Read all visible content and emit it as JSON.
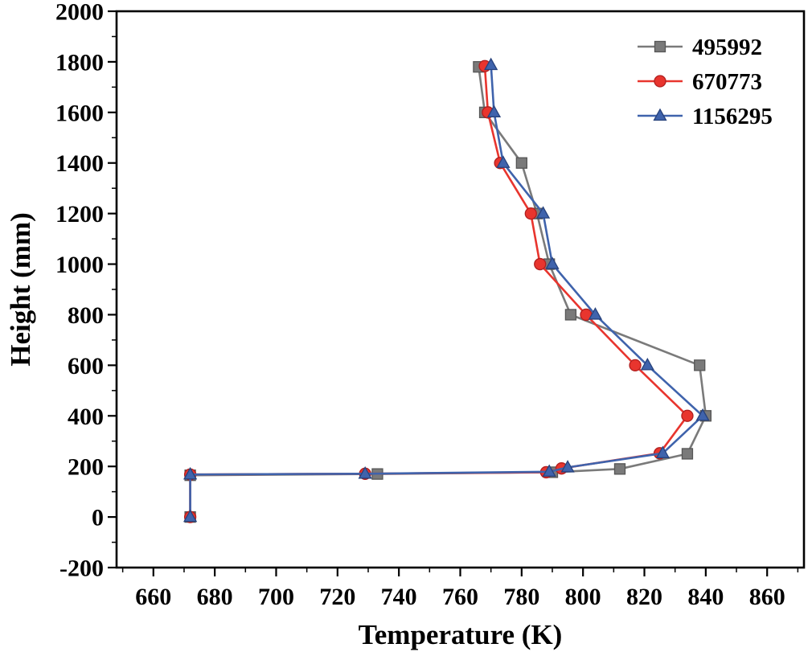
{
  "chart_data": {
    "type": "line",
    "title": "",
    "xlabel": "Temperature (K)",
    "ylabel": "Height (mm)",
    "xlim": [
      648,
      872
    ],
    "ylim": [
      -200,
      2000
    ],
    "xticks": [
      660,
      680,
      700,
      720,
      740,
      760,
      780,
      800,
      820,
      840,
      860
    ],
    "yticks": [
      -200,
      0,
      200,
      400,
      600,
      800,
      1000,
      1200,
      1400,
      1600,
      1800,
      2000
    ],
    "x_minor_step": 10,
    "y_minor_step": 100,
    "grid": false,
    "legend_position": "top-right-inside",
    "axis_color": "#000000",
    "background": "#ffffff",
    "series": [
      {
        "name": "495992",
        "marker": "square",
        "color": "#7a7a7a",
        "edge_color": "#565656",
        "points": [
          [
            672,
            0
          ],
          [
            672,
            165
          ],
          [
            733,
            170
          ],
          [
            790,
            177
          ],
          [
            812,
            190
          ],
          [
            834,
            250
          ],
          [
            840,
            400
          ],
          [
            838,
            600
          ],
          [
            796,
            800
          ],
          [
            789,
            1000
          ],
          [
            785,
            1200
          ],
          [
            780,
            1400
          ],
          [
            768,
            1600
          ],
          [
            766,
            1780
          ]
        ]
      },
      {
        "name": "670773",
        "marker": "circle",
        "color": "#e8352e",
        "edge_color": "#b01f1f",
        "points": [
          [
            672,
            0
          ],
          [
            672,
            168
          ],
          [
            729,
            171
          ],
          [
            788,
            177
          ],
          [
            793,
            192
          ],
          [
            825,
            252
          ],
          [
            834,
            400
          ],
          [
            817,
            600
          ],
          [
            801,
            800
          ],
          [
            786,
            1000
          ],
          [
            783,
            1200
          ],
          [
            773,
            1400
          ],
          [
            769,
            1600
          ],
          [
            768,
            1783
          ]
        ]
      },
      {
        "name": "1156295",
        "marker": "triangle",
        "color": "#3f63ac",
        "edge_color": "#27427c",
        "points": [
          [
            672,
            0
          ],
          [
            672,
            168
          ],
          [
            729,
            171
          ],
          [
            789,
            179
          ],
          [
            795,
            196
          ],
          [
            826,
            252
          ],
          [
            839,
            400
          ],
          [
            821,
            600
          ],
          [
            804,
            800
          ],
          [
            790,
            1000
          ],
          [
            787,
            1200
          ],
          [
            774,
            1400
          ],
          [
            771,
            1600
          ],
          [
            770,
            1787
          ]
        ]
      }
    ]
  }
}
